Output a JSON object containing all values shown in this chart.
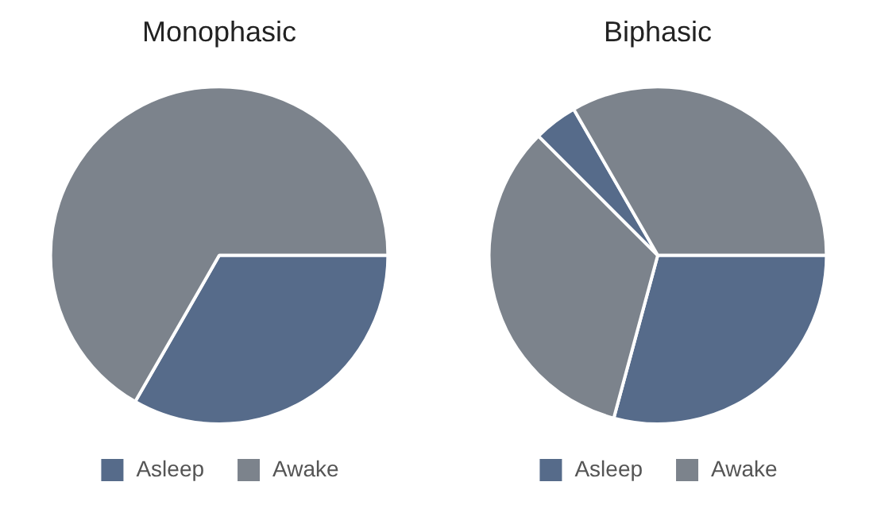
{
  "chart_data": [
    {
      "type": "pie",
      "title": "Monophasic",
      "categories": [
        "Asleep",
        "Awake"
      ],
      "values": [
        33.3,
        66.7
      ],
      "colors": [
        "#566b8a",
        "#7c838c"
      ],
      "legend": "bottom"
    },
    {
      "type": "pie",
      "title": "Biphasic",
      "categories": [
        "Asleep",
        "Awake",
        null,
        null
      ],
      "values": [
        29.2,
        33.3,
        4.2,
        33.3
      ],
      "colors": [
        "#566b8a",
        "#7c838c",
        "#566b8a",
        "#7c838c"
      ],
      "legend": "bottom"
    }
  ]
}
